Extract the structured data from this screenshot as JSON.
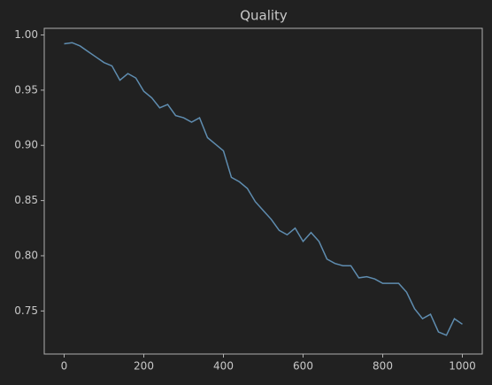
{
  "chart_data": {
    "type": "line",
    "title": "Quality",
    "x": [
      0,
      20,
      40,
      60,
      80,
      100,
      120,
      140,
      160,
      180,
      200,
      220,
      240,
      260,
      280,
      300,
      320,
      340,
      360,
      380,
      400,
      420,
      440,
      460,
      480,
      500,
      520,
      540,
      560,
      580,
      600,
      620,
      640,
      660,
      680,
      700,
      720,
      740,
      760,
      780,
      800,
      820,
      840,
      860,
      880,
      900,
      920,
      940,
      960,
      980,
      1000
    ],
    "series": [
      {
        "name": "Quality",
        "color": "#5f8db0",
        "values": [
          0.992,
          0.993,
          0.99,
          0.985,
          0.98,
          0.975,
          0.972,
          0.959,
          0.965,
          0.961,
          0.949,
          0.943,
          0.934,
          0.937,
          0.927,
          0.925,
          0.921,
          0.925,
          0.907,
          0.901,
          0.895,
          0.871,
          0.867,
          0.861,
          0.849,
          0.841,
          0.833,
          0.823,
          0.819,
          0.825,
          0.813,
          0.821,
          0.813,
          0.797,
          0.793,
          0.791,
          0.791,
          0.78,
          0.781,
          0.779,
          0.775,
          0.775,
          0.775,
          0.767,
          0.752,
          0.743,
          0.747,
          0.731,
          0.728,
          0.743,
          0.738
        ]
      }
    ],
    "xlim": [
      -50,
      1050
    ],
    "ylim": [
      0.711,
      1.006
    ],
    "xticks": [
      0,
      200,
      400,
      600,
      800,
      1000
    ],
    "yticks": [
      {
        "value": 0.75,
        "label": "0.75"
      },
      {
        "value": 0.8,
        "label": "0.80"
      },
      {
        "value": 0.85,
        "label": "0.85"
      },
      {
        "value": 0.9,
        "label": "0.90"
      },
      {
        "value": 0.95,
        "label": "0.95"
      },
      {
        "value": 1.0,
        "label": "1.00"
      }
    ],
    "grid": false
  }
}
